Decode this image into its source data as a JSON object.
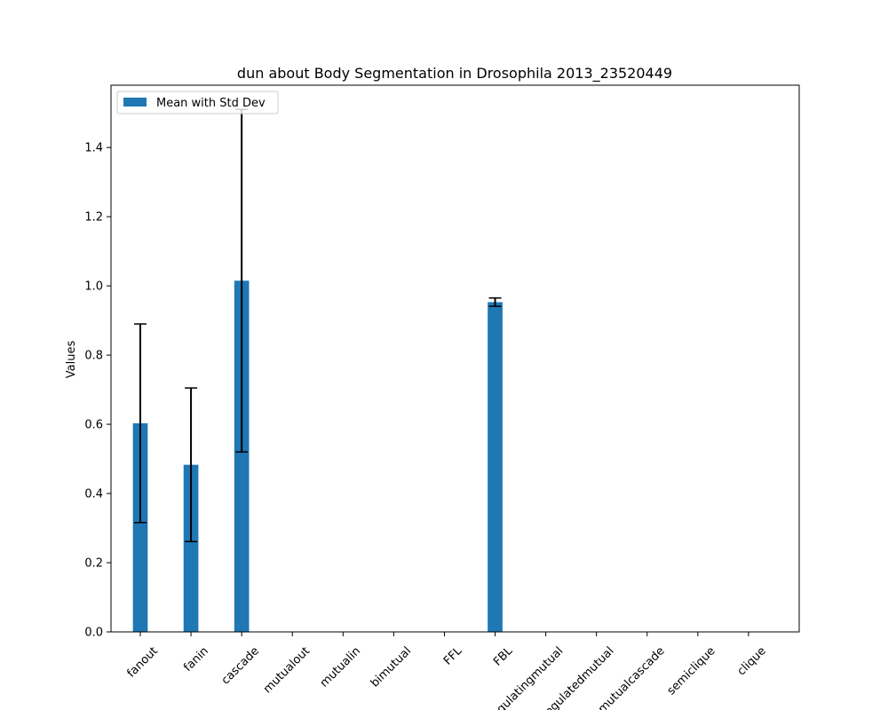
{
  "chart_data": {
    "type": "bar",
    "title": "dun about Body Segmentation in Drosophila 2013_23520449",
    "xlabel": "",
    "ylabel": "Values",
    "ylim": [
      0,
      1.58
    ],
    "yticks": [
      0.0,
      0.2,
      0.4,
      0.6,
      0.8,
      1.0,
      1.2,
      1.4
    ],
    "categories": [
      "fanout",
      "fanin",
      "cascade",
      "mutualout",
      "mutualin",
      "bimutual",
      "FFL",
      "FBL",
      "regulatingmutual",
      "regulatedmutual",
      "mutualcascade",
      "semiclique",
      "clique"
    ],
    "series": [
      {
        "name": "Mean with Std Dev",
        "color": "#1f77b4",
        "values": [
          0.603,
          0.483,
          1.015,
          0,
          0,
          0,
          0,
          0.953,
          0,
          0,
          0,
          0,
          0
        ],
        "errors": [
          0.287,
          0.222,
          0.495,
          0,
          0,
          0,
          0,
          0.012,
          0,
          0,
          0,
          0,
          0
        ]
      }
    ],
    "legend": {
      "position": "upper-left",
      "label": "Mean with Std Dev"
    },
    "grid": false
  }
}
